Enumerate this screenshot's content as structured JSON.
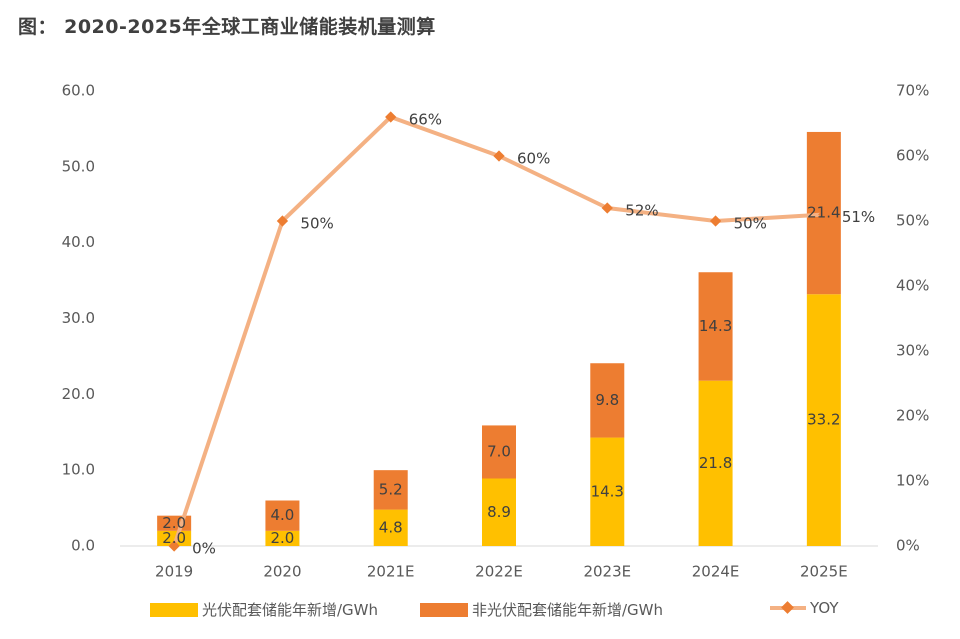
{
  "title": "图： 2020-2025年全球工商业储能装机量测算",
  "colors": {
    "pv": "#FFC000",
    "nonpv": "#ED7D31",
    "yoy_line": "#F4B183",
    "yoy_marker": "#ED7D31"
  },
  "chart_data": {
    "type": "bar",
    "stacked": true,
    "categories": [
      "2019",
      "2020",
      "2021E",
      "2022E",
      "2023E",
      "2024E",
      "2025E"
    ],
    "series": [
      {
        "name": "光伏配套储能年新增/GWh",
        "values": [
          2.0,
          2.0,
          4.8,
          8.9,
          14.3,
          21.8,
          33.2
        ],
        "labels": [
          "2.0",
          "2.0",
          "4.8",
          "8.9",
          "14.3",
          "21.8",
          "33.2"
        ]
      },
      {
        "name": "非光伏配套储能年新增/GWh",
        "values": [
          2.0,
          4.0,
          5.2,
          7.0,
          9.8,
          14.3,
          21.4
        ],
        "labels": [
          "2.0",
          "4.0",
          "5.2",
          "7.0",
          "9.8",
          "14.3",
          "21.4"
        ]
      },
      {
        "name": "YOY",
        "type": "line",
        "axis": "right",
        "values": [
          0,
          50,
          66,
          60,
          52,
          50,
          51
        ],
        "labels": [
          "0%",
          "50%",
          "66%",
          "60%",
          "52%",
          "50%",
          "51%"
        ]
      }
    ],
    "y_left": {
      "ylim": [
        0,
        60
      ],
      "ticks": [
        "0.0",
        "10.0",
        "20.0",
        "30.0",
        "40.0",
        "50.0",
        "60.0"
      ]
    },
    "y_right": {
      "ylim": [
        0,
        70
      ],
      "ticks": [
        "0%",
        "10%",
        "20%",
        "30%",
        "40%",
        "50%",
        "60%",
        "70%"
      ]
    },
    "grid": false,
    "legend_position": "bottom"
  }
}
